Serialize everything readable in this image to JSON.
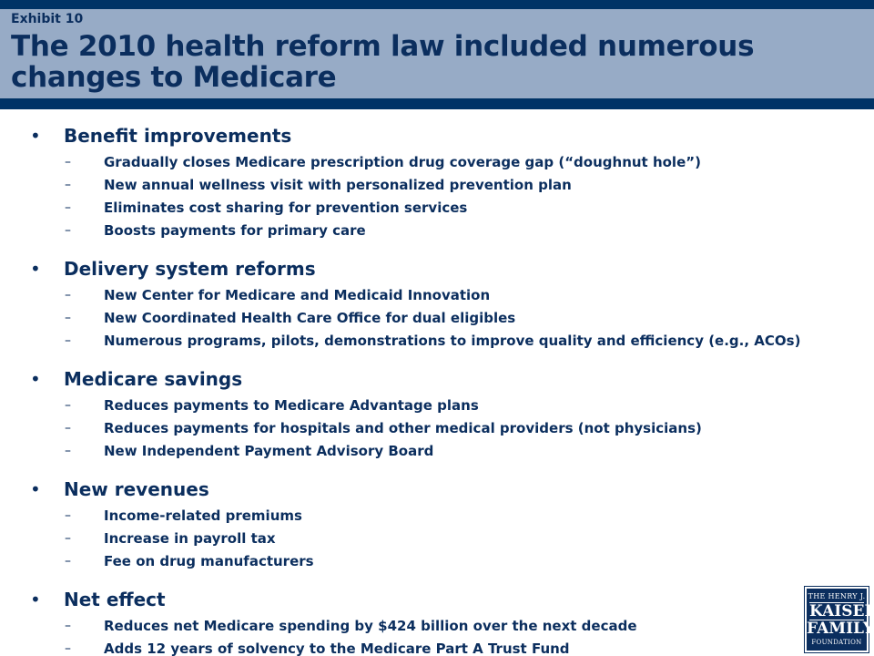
{
  "header": {
    "exhibit": "Exhibit 10",
    "title": "The 2010 health reform law included numerous changes to Medicare"
  },
  "sections": [
    {
      "title": "Benefit improvements",
      "items": [
        "Gradually closes Medicare prescription drug coverage gap (“doughnut hole”)",
        "New annual wellness visit with personalized prevention plan",
        "Eliminates cost sharing for prevention services",
        "Boosts payments for primary care"
      ]
    },
    {
      "title": "Delivery system reforms",
      "items": [
        "New Center for Medicare and Medicaid Innovation",
        "New Coordinated Health Care Office for dual eligibles",
        "Numerous programs, pilots, demonstrations to improve quality and efficiency (e.g., ACOs)"
      ]
    },
    {
      "title": "Medicare savings",
      "items": [
        "Reduces payments to Medicare Advantage plans",
        "Reduces payments for hospitals and other medical providers (not physicians)",
        "New Independent Payment Advisory Board"
      ]
    },
    {
      "title": "New revenues",
      "items": [
        "Income-related premiums",
        "Increase in payroll tax",
        "Fee on drug manufacturers"
      ]
    },
    {
      "title": "Net effect",
      "items": [
        "Reduces net Medicare spending by $424 billion over the next decade",
        "Adds 12 years of solvency to the Medicare Part A Trust Fund"
      ]
    }
  ],
  "logo": {
    "line1": "THE HENRY J.",
    "line2": "KAISER",
    "line3": "FAMILY",
    "line4": "FOUNDATION"
  },
  "colors": {
    "header_band": "#97abc6",
    "header_bars": "#003366",
    "text": "#0b2e5e"
  }
}
